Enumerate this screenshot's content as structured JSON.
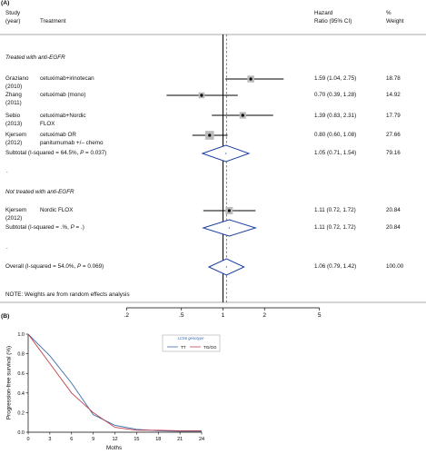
{
  "panel_a": {
    "label": "(A)",
    "headers": {
      "study": "Study",
      "year": "(year)",
      "treatment": "Treatment",
      "hr1": "Hazard",
      "hr2": "Ratio (95% CI)",
      "w1": "%",
      "w2": "Weight"
    },
    "groups": [
      {
        "title": "Treated with anti-EGFR",
        "rows": [
          {
            "study1": "Graziano",
            "study2": "(2010)",
            "treat1": "cetuximab+irinotecan",
            "treat2": "",
            "ci": "1.59 (1.04, 2.75)",
            "weight": "18.78"
          },
          {
            "study1": "Zhang",
            "study2": "(2011)",
            "treat1": "cetuximab (mono)",
            "treat2": "",
            "ci": "0.70 (0.39, 1.28)",
            "weight": "14.92"
          },
          {
            "study1": "Sebio",
            "study2": "(2013)",
            "treat1": "cetuximab+Nordic",
            "treat2": "FLOX",
            "ci": "1.39 (0.83, 2.31)",
            "weight": "17.79"
          },
          {
            "study1": "Kjersem",
            "study2": "(2012)",
            "treat1": "cetuximab OR",
            "treat2": "panitumumab +/– chemo",
            "ci": "0.80 (0.60, 1.08)",
            "weight": "27.66"
          }
        ],
        "subtotal": {
          "label": "Subtotal  (I-squared = 64.5%, ",
          "p_italic": "P",
          "p_rest": " = 0.037)",
          "ci": "1.05 (0.71, 1.54)",
          "weight": "79.16"
        },
        "dot": "."
      },
      {
        "title": "Not treated with anti-EGFR",
        "rows": [
          {
            "study1": "Kjersem",
            "study2": "(2012)",
            "treat1": "Nordic FLOX",
            "treat2": "",
            "ci": "1.11 (0.72, 1.72)",
            "weight": "20.84"
          }
        ],
        "subtotal": {
          "label": "Subtotal  (I-squared = .%, ",
          "p_italic": "P",
          "p_rest": " = .)",
          "ci": "1.11 (0.72, 1.72)",
          "weight": "20.84"
        },
        "dot": "."
      }
    ],
    "overall": {
      "label": "Overall  (I-squared = 54.0%, ",
      "p_italic": "P",
      "p_rest": " = 0.069)",
      "ci": "1.06 (0.79, 1.42)",
      "weight": "100.00"
    },
    "note": "NOTE: Weights are from random effects analysis",
    "axis_ticks": [
      ".2",
      ".5",
      "1",
      "2",
      "5"
    ]
  },
  "panel_b": {
    "label": "(B)",
    "ylabel": "Progression-free survival (%)",
    "xlabel": "Moths",
    "yticks": [
      "0.0",
      "0.2",
      "0.4",
      "0.6",
      "0.8",
      "1.0"
    ],
    "xticks": [
      "0",
      "3",
      "6",
      "9",
      "12",
      "15",
      "18",
      "21",
      "24"
    ],
    "legend_title": "LCS6 genotype",
    "series_names": [
      "TT",
      "TG/GG"
    ],
    "colors": {
      "TT": "#3a6fb0",
      "TGGG": "#c0404a"
    }
  },
  "chart_data": [
    {
      "type": "forest",
      "scale": "log",
      "xticks": [
        0.2,
        0.5,
        1,
        2,
        5
      ],
      "reference_line": 1,
      "overall_line": 1.06,
      "studies": [
        {
          "hr": 1.59,
          "lo": 1.04,
          "hi": 2.75,
          "weight": 18.78
        },
        {
          "hr": 0.7,
          "lo": 0.39,
          "hi": 1.28,
          "weight": 14.92
        },
        {
          "hr": 1.39,
          "lo": 0.83,
          "hi": 2.31,
          "weight": 17.79
        },
        {
          "hr": 0.8,
          "lo": 0.6,
          "hi": 1.08,
          "weight": 27.66
        },
        {
          "hr": 1.11,
          "lo": 0.72,
          "hi": 1.72,
          "weight": 20.84
        }
      ],
      "diamonds": [
        {
          "hr": 1.05,
          "lo": 0.71,
          "hi": 1.54
        },
        {
          "hr": 1.11,
          "lo": 0.72,
          "hi": 1.72
        },
        {
          "hr": 1.06,
          "lo": 0.79,
          "hi": 1.42
        }
      ]
    },
    {
      "type": "line",
      "xlim": [
        0,
        24
      ],
      "ylim": [
        0,
        1
      ],
      "series": [
        {
          "name": "TT",
          "x": [
            0,
            3,
            6,
            9,
            12,
            15,
            18,
            21,
            24
          ],
          "y": [
            1.0,
            0.78,
            0.5,
            0.18,
            0.07,
            0.03,
            0.015,
            0.01,
            0.01
          ]
        },
        {
          "name": "TG/GG",
          "x": [
            0,
            3,
            6,
            9,
            12,
            15,
            18,
            21,
            24
          ],
          "y": [
            1.0,
            0.7,
            0.4,
            0.2,
            0.05,
            0.02,
            0.02,
            0.015,
            0.015
          ]
        }
      ]
    }
  ]
}
